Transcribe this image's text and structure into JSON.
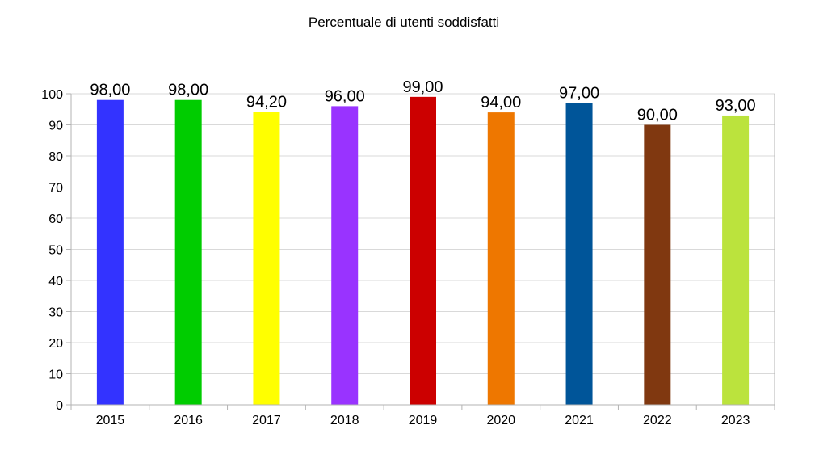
{
  "chart_data": {
    "type": "bar",
    "title": "Percentuale di utenti soddisfatti",
    "xlabel": "",
    "ylabel": "",
    "categories": [
      "2015",
      "2016",
      "2017",
      "2018",
      "2019",
      "2020",
      "2021",
      "2022",
      "2023"
    ],
    "values": [
      98.0,
      98.0,
      94.2,
      96.0,
      99.0,
      94.0,
      97.0,
      90.0,
      93.0
    ],
    "data_labels": [
      "98,00",
      "98,00",
      "94,20",
      "96,00",
      "99,00",
      "94,00",
      "97,00",
      "90,00",
      "93,00"
    ],
    "colors": [
      "#3333ff",
      "#00cc00",
      "#ffff00",
      "#9933ff",
      "#cc0000",
      "#ee7700",
      "#005599",
      "#803810",
      "#bbe33d"
    ],
    "ylim": [
      0,
      100
    ],
    "yticks": [
      0,
      10,
      20,
      30,
      40,
      50,
      60,
      70,
      80,
      90,
      100
    ],
    "grid": true,
    "legend": "none"
  }
}
